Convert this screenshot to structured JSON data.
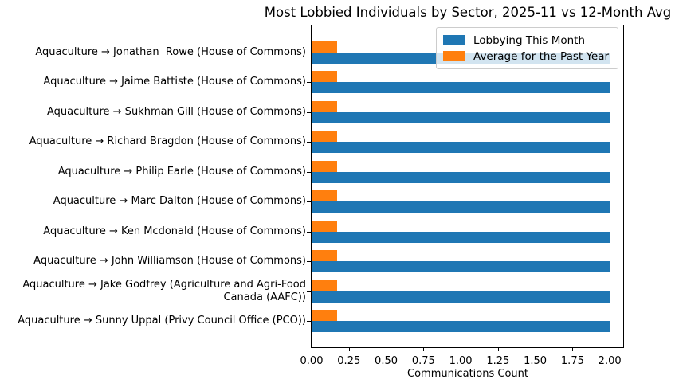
{
  "title": "Most Lobbied Individuals by Sector, 2025-11 vs 12-Month Avg",
  "chart_data": {
    "type": "bar",
    "orientation": "horizontal",
    "title": "Most Lobbied Individuals by Sector, 2025-11 vs 12-Month Avg",
    "xlabel": "Communications Count",
    "ylabel": "",
    "grid": false,
    "legend_position": "upper right",
    "xlim": [
      0,
      2.09
    ],
    "xtick_values": [
      0,
      0.25,
      0.5,
      0.75,
      1.0,
      1.25,
      1.5,
      1.75,
      2.0
    ],
    "xtick_labels": [
      "0.00",
      "0.25",
      "0.50",
      "0.75",
      "1.00",
      "1.25",
      "1.50",
      "1.75",
      "2.00"
    ],
    "categories": [
      "Aquaculture → Jonathan  Rowe (House of Commons)",
      "Aquaculture → Jaime Battiste (House of Commons)",
      "Aquaculture → Sukhman Gill (House of Commons)",
      "Aquaculture → Richard Bragdon (House of Commons)",
      "Aquaculture → Philip Earle (House of Commons)",
      "Aquaculture → Marc Dalton (House of Commons)",
      "Aquaculture → Ken Mcdonald (House of Commons)",
      "Aquaculture → John Williamson (House of Commons)",
      "Aquaculture → Jake Godfrey (Agriculture and Agri-Food Canada (AAFC))",
      "Aquaculture → Sunny Uppal (Privy Council Office (PCO))"
    ],
    "series": [
      {
        "name": "Lobbying This Month",
        "color": "#1f77b4",
        "values": [
          2,
          2,
          2,
          2,
          2,
          2,
          2,
          2,
          2,
          2
        ]
      },
      {
        "name": "Average for the Past Year",
        "color": "#ff7f0e",
        "values": [
          0.17,
          0.17,
          0.17,
          0.17,
          0.17,
          0.17,
          0.17,
          0.17,
          0.17,
          0.17
        ]
      }
    ]
  }
}
